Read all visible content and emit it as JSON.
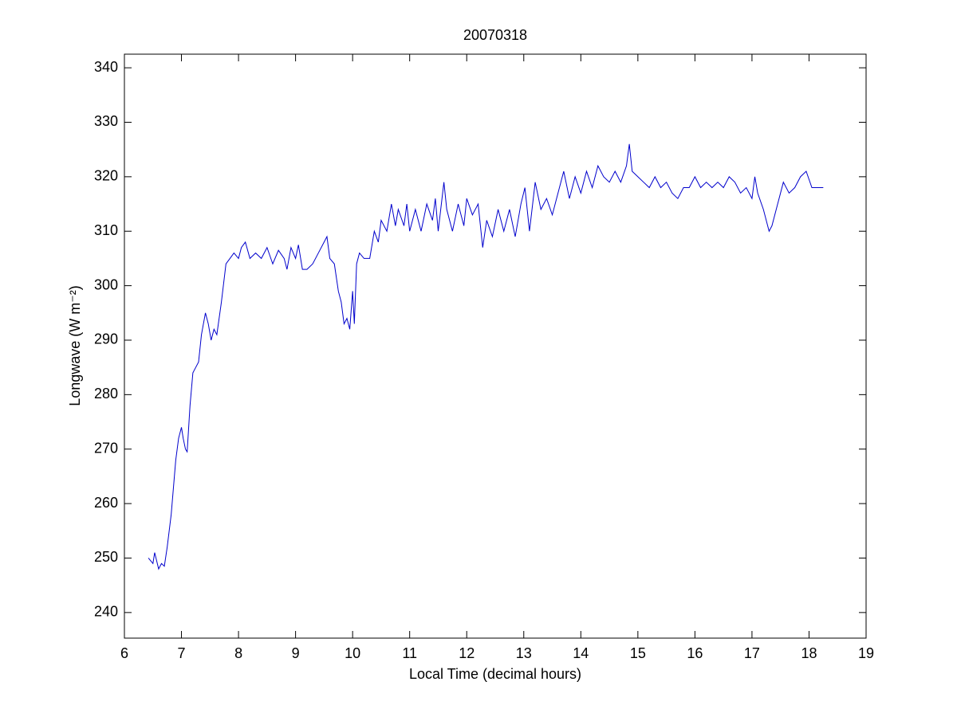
{
  "chart_data": {
    "type": "line",
    "title": "20070318",
    "x_label": "Local Time (decimal hours)",
    "y_label": "Longwave (W m⁻²)",
    "xlim": [
      6,
      19
    ],
    "xticks": [
      6,
      7,
      8,
      9,
      10,
      11,
      12,
      13,
      14,
      15,
      16,
      17,
      18,
      19
    ],
    "ylim": [
      235.3,
      342.5
    ],
    "yticks": [
      240,
      250,
      260,
      270,
      280,
      290,
      300,
      310,
      320,
      330,
      340
    ],
    "grid": false,
    "series": [
      {
        "color": "#0000cc",
        "x": [
          6.42,
          6.5,
          6.53,
          6.6,
          6.65,
          6.7,
          6.75,
          6.82,
          6.9,
          6.95,
          7.0,
          7.03,
          7.07,
          7.1,
          7.15,
          7.2,
          7.25,
          7.3,
          7.35,
          7.42,
          7.47,
          7.52,
          7.57,
          7.62,
          7.7,
          7.78,
          7.85,
          7.92,
          8.0,
          8.05,
          8.12,
          8.2,
          8.3,
          8.4,
          8.5,
          8.6,
          8.7,
          8.8,
          8.85,
          8.92,
          9.0,
          9.05,
          9.12,
          9.2,
          9.3,
          9.4,
          9.5,
          9.55,
          9.6,
          9.68,
          9.75,
          9.8,
          9.85,
          9.9,
          9.95,
          10.0,
          10.03,
          10.07,
          10.12,
          10.2,
          10.3,
          10.38,
          10.45,
          10.5,
          10.6,
          10.68,
          10.75,
          10.8,
          10.9,
          10.95,
          11.0,
          11.1,
          11.2,
          11.3,
          11.4,
          11.45,
          11.5,
          11.6,
          11.65,
          11.75,
          11.85,
          11.95,
          12.0,
          12.1,
          12.2,
          12.28,
          12.35,
          12.45,
          12.55,
          12.65,
          12.75,
          12.85,
          12.95,
          13.02,
          13.1,
          13.2,
          13.3,
          13.4,
          13.5,
          13.6,
          13.7,
          13.8,
          13.9,
          14.0,
          14.1,
          14.2,
          14.3,
          14.4,
          14.5,
          14.6,
          14.7,
          14.8,
          14.85,
          14.9,
          15.0,
          15.1,
          15.2,
          15.3,
          15.4,
          15.5,
          15.6,
          15.7,
          15.8,
          15.9,
          16.0,
          16.1,
          16.2,
          16.3,
          16.4,
          16.5,
          16.6,
          16.7,
          16.8,
          16.9,
          17.0,
          17.05,
          17.1,
          17.2,
          17.3,
          17.35,
          17.45,
          17.55,
          17.65,
          17.75,
          17.85,
          17.95,
          18.05,
          18.15,
          18.25
        ],
        "values": [
          250,
          249,
          251,
          248,
          249,
          248.5,
          252,
          258,
          268,
          272,
          274,
          272,
          270,
          269.5,
          278,
          284,
          285,
          286,
          291,
          295,
          293,
          290,
          292,
          291,
          297,
          304,
          305,
          306,
          305,
          307,
          308,
          305,
          306,
          305,
          307,
          304,
          306.5,
          305,
          303,
          307,
          305,
          307.5,
          303,
          303,
          304,
          306,
          308,
          309,
          305,
          304,
          299,
          297,
          293,
          294,
          292,
          299,
          293,
          304,
          306,
          305,
          305,
          310,
          308,
          312,
          310,
          315,
          311,
          314,
          311,
          315,
          310,
          314,
          310,
          315,
          312,
          316,
          310,
          319,
          314,
          310,
          315,
          311,
          316,
          313,
          315,
          307,
          312,
          309,
          314,
          310,
          314,
          309,
          315,
          318,
          310,
          319,
          314,
          316,
          313,
          317,
          321,
          316,
          320,
          317,
          321,
          318,
          322,
          320,
          319,
          321,
          319,
          322,
          326,
          321,
          320,
          319,
          318,
          320,
          318,
          319,
          317,
          316,
          318,
          318,
          320,
          318,
          319,
          318,
          319,
          318,
          320,
          319,
          317,
          318,
          316,
          320,
          317,
          314,
          310,
          311,
          315,
          319,
          317,
          318,
          320,
          321,
          318,
          318,
          318
        ]
      }
    ]
  }
}
